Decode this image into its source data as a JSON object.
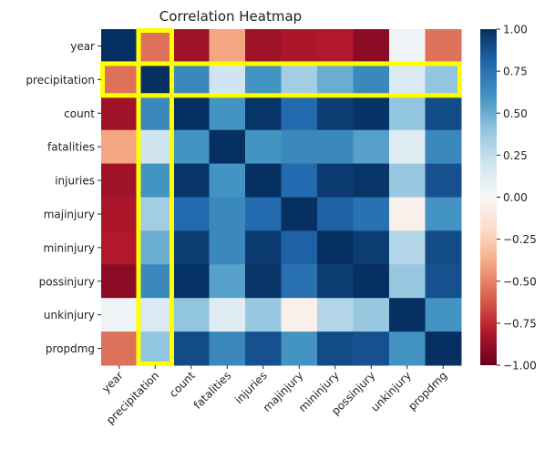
{
  "chart_data": {
    "type": "heatmap",
    "title": "Correlation Heatmap",
    "xlabel": "",
    "ylabel": "",
    "labels": [
      "year",
      "precipitation",
      "count",
      "fatalities",
      "injuries",
      "majinjury",
      "mininjury",
      "possinjury",
      "unkinjury",
      "propdmg"
    ],
    "matrix": [
      [
        1.0,
        -0.55,
        -0.85,
        -0.4,
        -0.85,
        -0.82,
        -0.8,
        -0.9,
        0.05,
        -0.55
      ],
      [
        -0.55,
        1.0,
        0.65,
        0.2,
        0.6,
        0.35,
        0.5,
        0.65,
        0.15,
        0.4
      ],
      [
        -0.85,
        0.65,
        1.0,
        0.6,
        0.98,
        0.78,
        0.95,
        0.99,
        0.4,
        0.9
      ],
      [
        -0.4,
        0.2,
        0.6,
        1.0,
        0.6,
        0.65,
        0.65,
        0.55,
        0.12,
        0.65
      ],
      [
        -0.85,
        0.6,
        0.98,
        0.6,
        1.0,
        0.78,
        0.96,
        0.98,
        0.38,
        0.88
      ],
      [
        -0.82,
        0.35,
        0.78,
        0.65,
        0.78,
        1.0,
        0.82,
        0.75,
        -0.05,
        0.6
      ],
      [
        -0.8,
        0.5,
        0.95,
        0.65,
        0.96,
        0.82,
        1.0,
        0.95,
        0.3,
        0.9
      ],
      [
        -0.9,
        0.65,
        0.99,
        0.55,
        0.98,
        0.75,
        0.95,
        1.0,
        0.38,
        0.88
      ],
      [
        0.05,
        0.15,
        0.4,
        0.12,
        0.38,
        -0.05,
        0.3,
        0.38,
        1.0,
        0.6
      ],
      [
        -0.55,
        0.4,
        0.9,
        0.65,
        0.88,
        0.6,
        0.9,
        0.88,
        0.6,
        1.0
      ]
    ],
    "colorbar": {
      "min": -1.0,
      "max": 1.0,
      "ticks": [
        1.0,
        0.75,
        0.5,
        0.25,
        0.0,
        -0.25,
        -0.5,
        -0.75,
        -1.0
      ],
      "tick_labels": [
        "1.00",
        "0.75",
        "0.50",
        "0.25",
        "0.00",
        "−0.25",
        "−0.50",
        "−0.75",
        "−1.00"
      ],
      "colormap": "RdBu"
    },
    "highlight": {
      "row": "precipitation",
      "column": "precipitation",
      "color": "#ffff00"
    }
  }
}
